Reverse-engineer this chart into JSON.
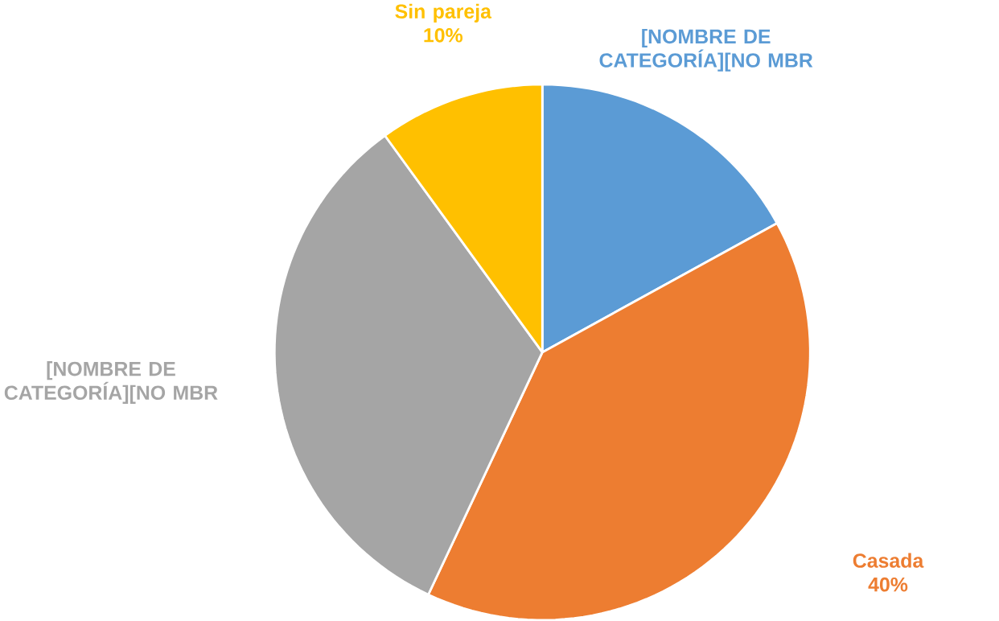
{
  "chart_data": {
    "type": "pie",
    "categories": [
      "[NOMBRE DE CATEGORÍA][NO MBR",
      "Casada",
      "[NOMBRE DE CATEGORÍA][NO MBR",
      "Sin pareja"
    ],
    "values": [
      17,
      40,
      33,
      10
    ],
    "value_labels": [
      null,
      "40%",
      null,
      "10%"
    ],
    "colors": [
      "#5b9bd5",
      "#ed7d31",
      "#a5a5a5",
      "#ffc000"
    ]
  }
}
